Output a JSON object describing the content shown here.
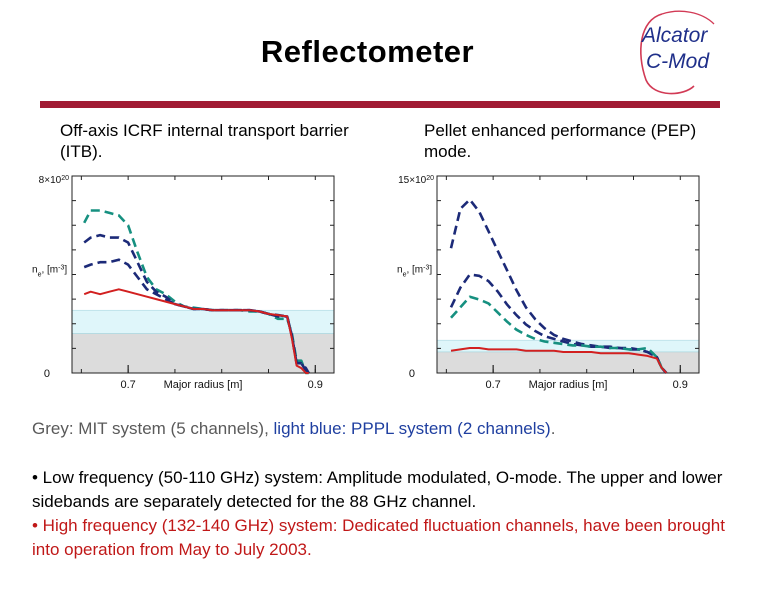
{
  "slide": {
    "title": "Reflectometer",
    "logo": {
      "line1": "Alcator",
      "line2": "C-Mod"
    },
    "left_caption": "Off-axis ICRF internal transport barrier (ITB).",
    "right_caption": "Pellet enhanced performance (PEP) mode.",
    "legend": {
      "grey_part": "Grey: MIT system (5 channels), ",
      "blue_part": "light blue: PPPL system (2 channels)",
      "end": "."
    },
    "bullet1": "• Low frequency (50-110 GHz) system: Amplitude modulated, O-mode. The upper and lower sidebands are separately detected for the 88 GHz channel.",
    "bullet2": "• High frequency (132-140 GHz) system: Dedicated fluctuation channels, have been brought into operation from May to July 2003."
  },
  "colors": {
    "rule": "#a11b34",
    "grey_band": "#dcdcdc",
    "blue_band": "#dff6fa",
    "red": "#d22020",
    "navy": "#1c2a78",
    "teal": "#169080"
  },
  "chart_data": [
    {
      "type": "line",
      "xlabel": "Major radius [m]",
      "ylabel": "n_e [m^-3]",
      "y_top_label": "8×10^20",
      "y_zero_label": "0",
      "x_tick_labels": [
        "0.7",
        "0.9"
      ],
      "x_ticks": [
        0.7,
        0.9
      ],
      "xlim": [
        0.64,
        0.92
      ],
      "ylim": [
        0,
        8
      ],
      "bands": [
        {
          "name": "PPPL",
          "range": [
            1.6,
            2.55
          ],
          "color": "#dff6fa"
        },
        {
          "name": "MIT",
          "range": [
            0,
            1.6
          ],
          "color": "#dcdcdc"
        }
      ],
      "series": [
        {
          "style": "teal",
          "x": [
            0.653,
            0.66,
            0.67,
            0.68,
            0.69,
            0.7,
            0.71,
            0.72,
            0.73,
            0.74,
            0.75,
            0.76,
            0.77,
            0.78,
            0.79,
            0.8,
            0.81,
            0.82,
            0.83,
            0.84,
            0.85,
            0.86,
            0.87,
            0.875,
            0.88,
            0.885,
            0.89,
            0.893
          ],
          "y": [
            6.1,
            6.6,
            6.6,
            6.5,
            6.4,
            6.0,
            4.9,
            3.9,
            3.4,
            3.2,
            2.9,
            2.7,
            2.65,
            2.6,
            2.55,
            2.55,
            2.55,
            2.55,
            2.5,
            2.5,
            2.4,
            2.2,
            2.2,
            1.6,
            0.5,
            0.5,
            0.0,
            0.0
          ]
        },
        {
          "style": "navy",
          "x": [
            0.653,
            0.66,
            0.67,
            0.68,
            0.69,
            0.7,
            0.71,
            0.72,
            0.73,
            0.74,
            0.75,
            0.76,
            0.77,
            0.78,
            0.79,
            0.8,
            0.81,
            0.82,
            0.83,
            0.84,
            0.85,
            0.86,
            0.87,
            0.875,
            0.88,
            0.885,
            0.89,
            0.893
          ],
          "y": [
            5.3,
            5.5,
            5.6,
            5.5,
            5.5,
            5.3,
            4.5,
            3.7,
            3.3,
            3.1,
            2.8,
            2.7,
            2.6,
            2.6,
            2.55,
            2.55,
            2.55,
            2.55,
            2.55,
            2.5,
            2.4,
            2.3,
            2.3,
            1.5,
            0.4,
            0.4,
            0.1,
            0.0
          ]
        },
        {
          "style": "navy",
          "x": [
            0.653,
            0.66,
            0.67,
            0.68,
            0.69,
            0.7,
            0.71,
            0.72,
            0.73,
            0.74,
            0.75,
            0.76,
            0.77,
            0.78,
            0.79,
            0.8,
            0.81,
            0.82,
            0.83,
            0.84,
            0.85,
            0.86,
            0.87,
            0.875,
            0.88,
            0.885,
            0.89,
            0.893
          ],
          "y": [
            4.3,
            4.4,
            4.5,
            4.5,
            4.6,
            4.4,
            3.9,
            3.4,
            3.2,
            3.0,
            2.8,
            2.7,
            2.6,
            2.6,
            2.55,
            2.55,
            2.55,
            2.55,
            2.55,
            2.5,
            2.4,
            2.35,
            2.3,
            1.5,
            0.4,
            0.4,
            0.2,
            0.0
          ]
        },
        {
          "style": "red",
          "x": [
            0.653,
            0.66,
            0.67,
            0.68,
            0.69,
            0.7,
            0.71,
            0.72,
            0.73,
            0.74,
            0.75,
            0.76,
            0.77,
            0.78,
            0.79,
            0.8,
            0.81,
            0.82,
            0.83,
            0.84,
            0.85,
            0.86,
            0.87,
            0.875,
            0.88,
            0.885,
            0.89,
            0.893
          ],
          "y": [
            3.2,
            3.3,
            3.2,
            3.3,
            3.4,
            3.3,
            3.2,
            3.1,
            3.0,
            2.9,
            2.8,
            2.7,
            2.6,
            2.6,
            2.55,
            2.55,
            2.55,
            2.55,
            2.55,
            2.5,
            2.4,
            2.35,
            2.3,
            1.4,
            0.3,
            0.2,
            0.0,
            0.0
          ]
        }
      ]
    },
    {
      "type": "line",
      "xlabel": "Major radius [m]",
      "ylabel": "n_e [m^-3]",
      "y_top_label": "15×10^20",
      "y_zero_label": "0",
      "x_tick_labels": [
        "0.7",
        "0.9"
      ],
      "x_ticks": [
        0.7,
        0.9
      ],
      "xlim": [
        0.64,
        0.92
      ],
      "ylim": [
        0,
        15
      ],
      "bands": [
        {
          "name": "PPPL",
          "range": [
            1.6,
            2.5
          ],
          "color": "#dff6fa"
        },
        {
          "name": "MIT",
          "range": [
            0,
            1.6
          ],
          "color": "#dcdcdc"
        }
      ],
      "series": [
        {
          "style": "navy",
          "x": [
            0.655,
            0.665,
            0.675,
            0.685,
            0.695,
            0.705,
            0.715,
            0.725,
            0.735,
            0.745,
            0.755,
            0.765,
            0.775,
            0.785,
            0.795,
            0.805,
            0.815,
            0.825,
            0.835,
            0.845,
            0.855,
            0.865,
            0.875,
            0.88,
            0.885
          ],
          "y": [
            9.5,
            12.5,
            13.2,
            12.3,
            10.8,
            9.3,
            7.8,
            6.3,
            5.0,
            4.1,
            3.4,
            2.9,
            2.6,
            2.4,
            2.2,
            2.1,
            2.0,
            2.0,
            1.9,
            1.9,
            1.8,
            1.6,
            1.2,
            0.4,
            0.0
          ]
        },
        {
          "style": "navy",
          "x": [
            0.655,
            0.665,
            0.675,
            0.685,
            0.695,
            0.705,
            0.715,
            0.725,
            0.735,
            0.745,
            0.755,
            0.765,
            0.775,
            0.785,
            0.795,
            0.805,
            0.815,
            0.825,
            0.835,
            0.845,
            0.855,
            0.865,
            0.875,
            0.88,
            0.885
          ],
          "y": [
            5.0,
            6.5,
            7.5,
            7.4,
            7.0,
            6.2,
            5.2,
            4.4,
            3.7,
            3.2,
            2.8,
            2.6,
            2.4,
            2.2,
            2.1,
            2.0,
            2.0,
            1.9,
            1.9,
            1.8,
            1.8,
            1.6,
            1.2,
            0.4,
            0.0
          ]
        },
        {
          "style": "teal",
          "x": [
            0.655,
            0.665,
            0.675,
            0.685,
            0.695,
            0.705,
            0.715,
            0.725,
            0.735,
            0.745,
            0.755,
            0.765,
            0.775,
            0.785,
            0.795,
            0.805,
            0.815,
            0.825,
            0.835,
            0.845,
            0.855,
            0.865,
            0.875,
            0.88,
            0.885
          ],
          "y": [
            4.2,
            5.0,
            5.8,
            5.6,
            5.3,
            4.6,
            3.9,
            3.3,
            2.9,
            2.6,
            2.4,
            2.3,
            2.2,
            2.1,
            2.1,
            2.0,
            2.0,
            1.9,
            1.9,
            1.8,
            1.8,
            1.9,
            1.2,
            0.4,
            0.0
          ]
        },
        {
          "style": "red",
          "x": [
            0.655,
            0.665,
            0.675,
            0.685,
            0.695,
            0.705,
            0.715,
            0.725,
            0.735,
            0.745,
            0.755,
            0.765,
            0.775,
            0.785,
            0.795,
            0.805,
            0.815,
            0.825,
            0.835,
            0.845,
            0.855,
            0.865,
            0.875,
            0.88,
            0.885
          ],
          "y": [
            1.7,
            1.8,
            1.9,
            1.9,
            1.8,
            1.8,
            1.8,
            1.8,
            1.7,
            1.7,
            1.7,
            1.7,
            1.6,
            1.6,
            1.6,
            1.6,
            1.5,
            1.5,
            1.5,
            1.5,
            1.4,
            1.3,
            1.1,
            0.4,
            0.0
          ]
        }
      ]
    }
  ]
}
